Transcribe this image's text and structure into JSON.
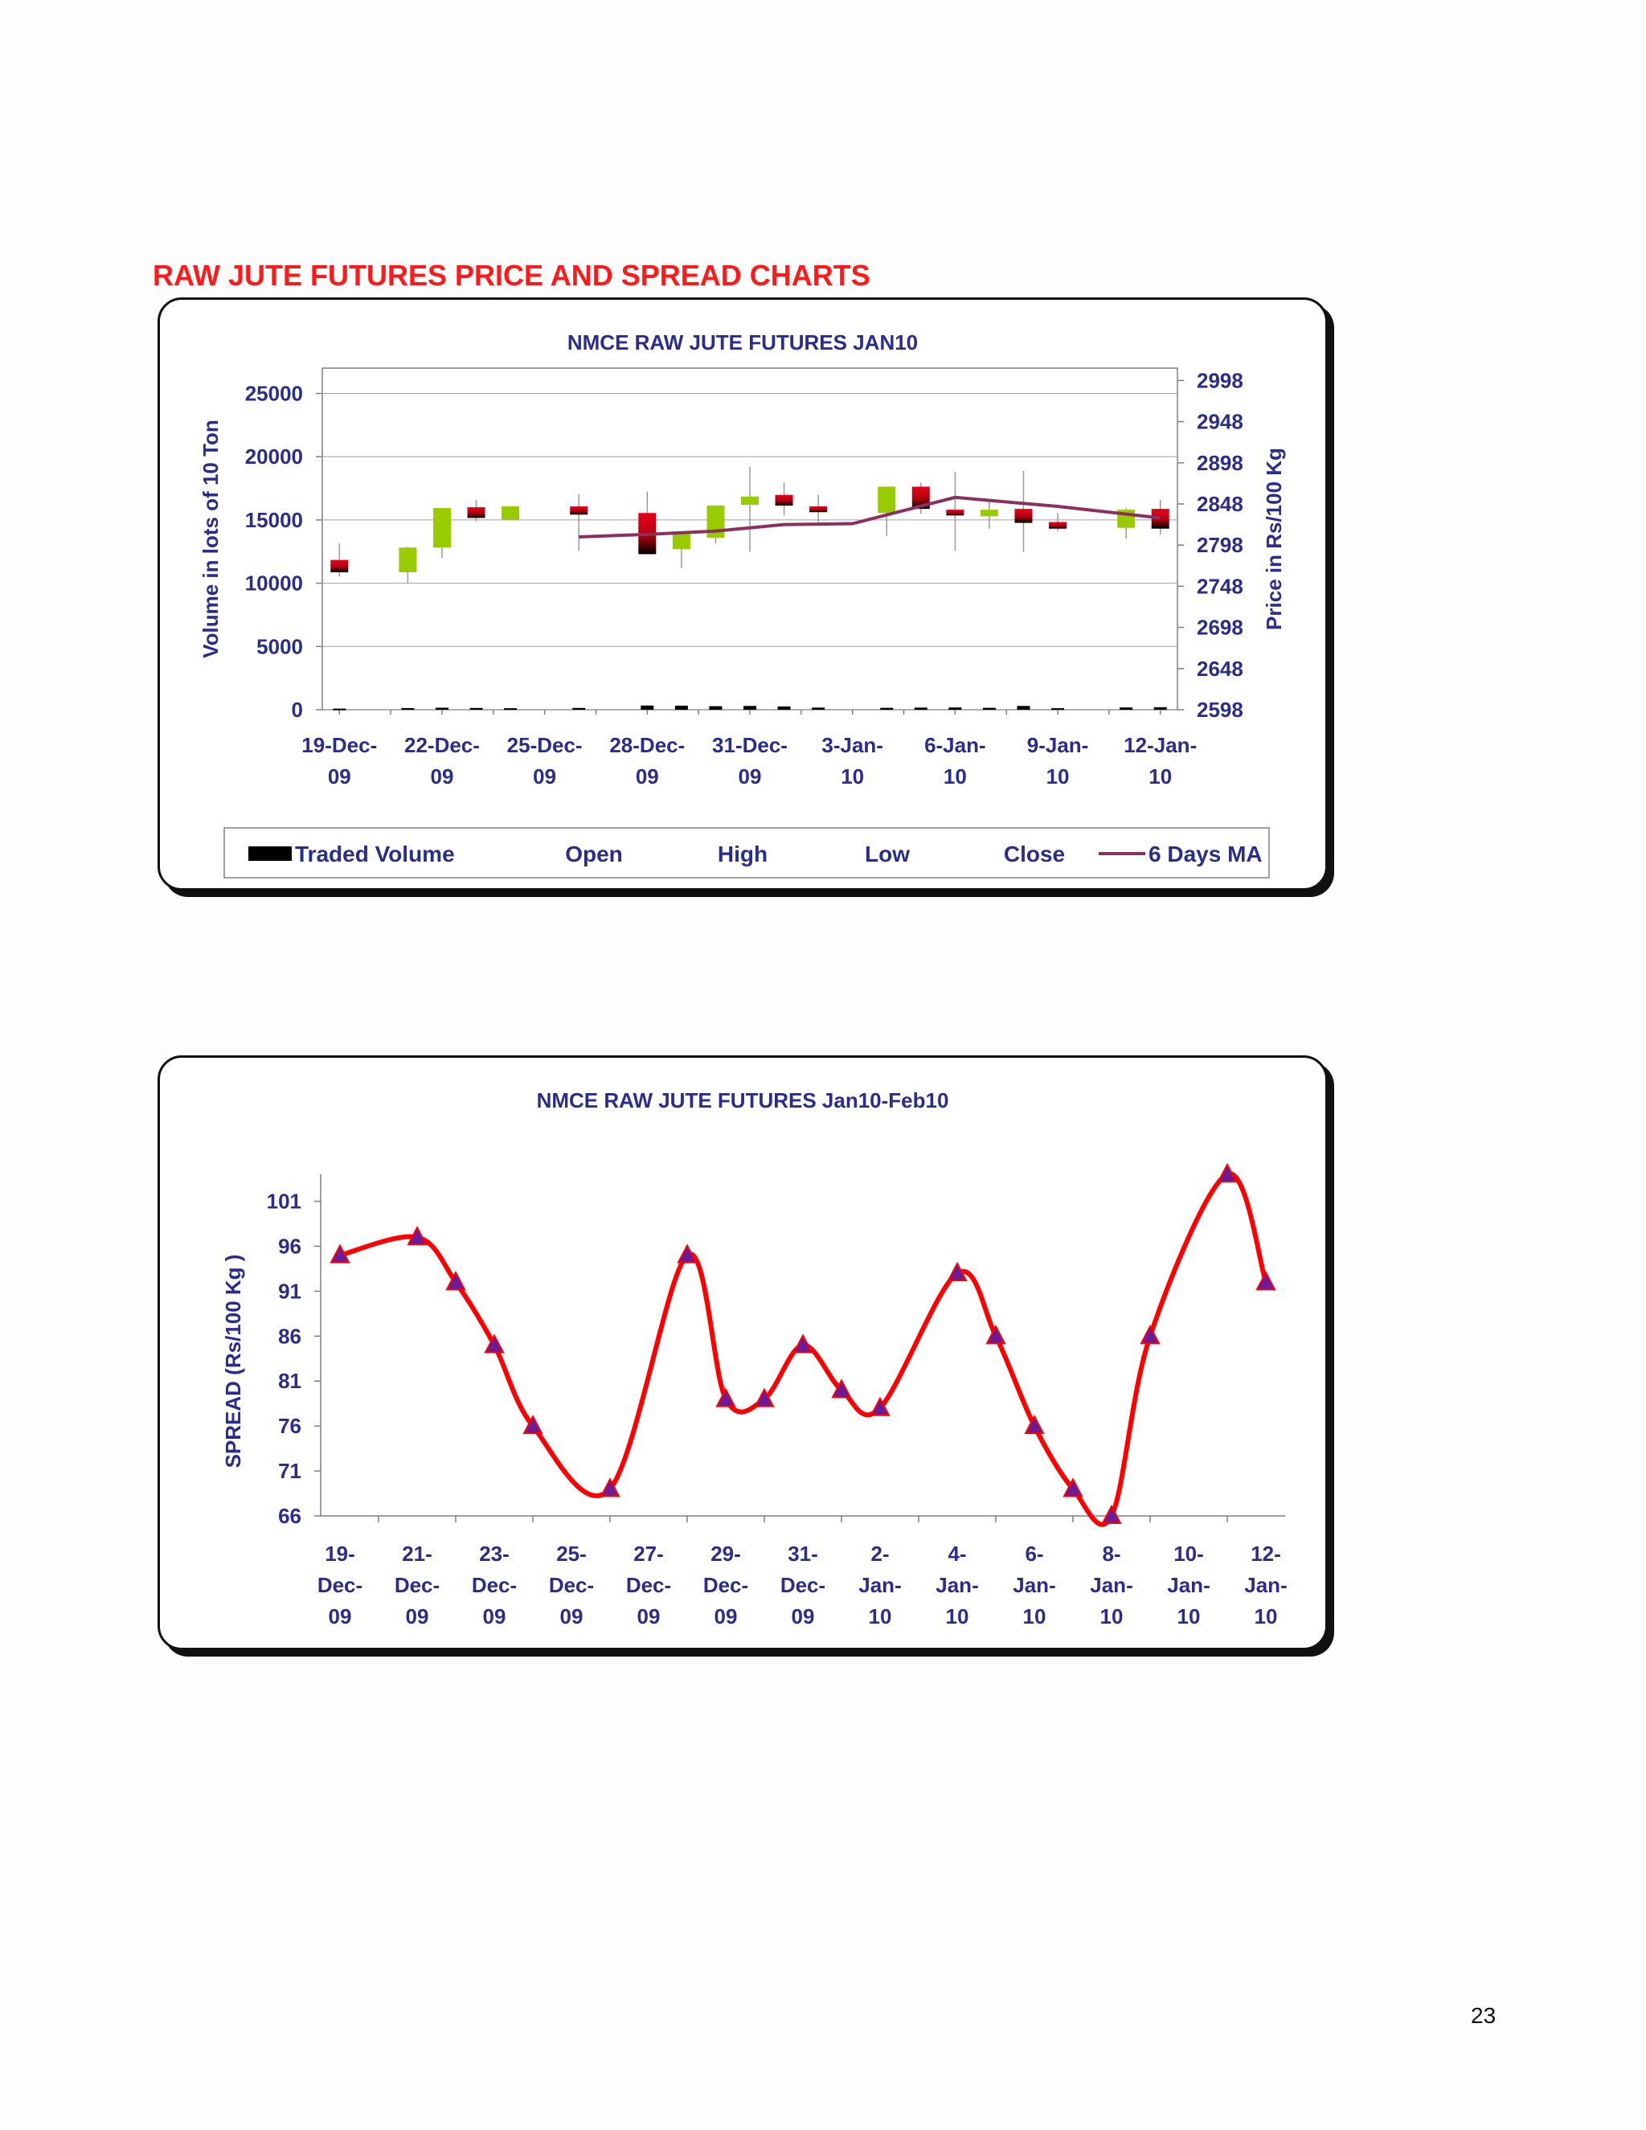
{
  "heading": "RAW JUTE FUTURES PRICE AND SPREAD CHARTS",
  "page_number": "23",
  "colors": {
    "heading": "#ff1a1a",
    "axis_text": "#2b2d8e",
    "bull_candle": "#99cc00",
    "bear_candle": "#e8001c",
    "ma_line": "#8b2f5e",
    "spread_line": "#ff0000",
    "spread_marker": "#6a1b9a"
  },
  "chart_data": [
    {
      "type": "candlestick",
      "title": "NMCE RAW JUTE FUTURES JAN10",
      "ylabel_left": "Volume in lots of 10 Ton",
      "ylabel_right": "Price in Rs/100 Kg",
      "y_left_ticks": [
        "0",
        "5000",
        "10000",
        "15000",
        "20000",
        "25000"
      ],
      "y_left_lim": [
        0,
        27000
      ],
      "y_right_ticks": [
        "2598",
        "2648",
        "2698",
        "2748",
        "2798",
        "2848",
        "2898",
        "2948",
        "2998"
      ],
      "y_right_lim": [
        2598,
        3013
      ],
      "x_tick_labels": [
        "19-Dec-\n09",
        "22-Dec-\n09",
        "25-Dec-\n09",
        "28-Dec-\n09",
        "31-Dec-\n09",
        "3-Jan-\n10",
        "6-Jan-\n10",
        "9-Jan-\n10",
        "12-Jan-\n10"
      ],
      "x_tick_days": [
        0,
        3,
        6,
        9,
        12,
        15,
        18,
        21,
        24
      ],
      "x_range_days": [
        -0.5,
        24.5
      ],
      "legend": [
        {
          "label": "Traded Volume",
          "symbol": "bar"
        },
        {
          "label": "Open",
          "symbol": "none"
        },
        {
          "label": "High",
          "symbol": "none"
        },
        {
          "label": "Low",
          "symbol": "none"
        },
        {
          "label": "Close",
          "symbol": "none"
        },
        {
          "label": "6 Days MA",
          "symbol": "line"
        }
      ],
      "candles": [
        {
          "day": 0,
          "open": 2780,
          "high": 2800,
          "low": 2760,
          "close": 2765,
          "volume": 90
        },
        {
          "day": 2,
          "open": 2765,
          "high": 2796,
          "low": 2752,
          "close": 2795,
          "volume": 130
        },
        {
          "day": 3,
          "open": 2795,
          "high": 2843,
          "low": 2782,
          "close": 2843,
          "volume": 160
        },
        {
          "day": 4,
          "open": 2844,
          "high": 2853,
          "low": 2827,
          "close": 2831,
          "volume": 140
        },
        {
          "day": 5,
          "open": 2829,
          "high": 2845,
          "low": 2829,
          "close": 2845,
          "volume": 120
        },
        {
          "day": 7,
          "open": 2845,
          "high": 2860,
          "low": 2791,
          "close": 2835,
          "volume": 140
        },
        {
          "day": 9,
          "open": 2837,
          "high": 2863,
          "low": 2790,
          "close": 2787,
          "volume": 330
        },
        {
          "day": 10,
          "open": 2793,
          "high": 2814,
          "low": 2770,
          "close": 2813,
          "volume": 320
        },
        {
          "day": 11,
          "open": 2807,
          "high": 2846,
          "low": 2800,
          "close": 2846,
          "volume": 280
        },
        {
          "day": 12,
          "open": 2847,
          "high": 2893,
          "low": 2790,
          "close": 2857,
          "volume": 300
        },
        {
          "day": 13,
          "open": 2859,
          "high": 2874,
          "low": 2834,
          "close": 2846,
          "volume": 260
        },
        {
          "day": 14,
          "open": 2845,
          "high": 2859,
          "low": 2826,
          "close": 2838,
          "volume": 170
        },
        {
          "day": 16,
          "open": 2837,
          "high": 2866,
          "low": 2809,
          "close": 2869,
          "volume": 150
        },
        {
          "day": 17,
          "open": 2869,
          "high": 2874,
          "low": 2836,
          "close": 2842,
          "volume": 170
        },
        {
          "day": 18,
          "open": 2841,
          "high": 2887,
          "low": 2791,
          "close": 2834,
          "volume": 180
        },
        {
          "day": 19,
          "open": 2833,
          "high": 2854,
          "low": 2818,
          "close": 2841,
          "volume": 150
        },
        {
          "day": 20,
          "open": 2842,
          "high": 2888,
          "low": 2790,
          "close": 2825,
          "volume": 300
        },
        {
          "day": 21,
          "open": 2826,
          "high": 2837,
          "low": 2815,
          "close": 2818,
          "volume": 120
        },
        {
          "day": 23,
          "open": 2819,
          "high": 2843,
          "low": 2806,
          "close": 2841,
          "volume": 180
        },
        {
          "day": 24,
          "open": 2842,
          "high": 2853,
          "low": 2811,
          "close": 2818,
          "volume": 200
        }
      ],
      "ma_6day": [
        {
          "day": 7,
          "value": 2808
        },
        {
          "day": 9,
          "value": 2811
        },
        {
          "day": 11,
          "value": 2815
        },
        {
          "day": 13,
          "value": 2823
        },
        {
          "day": 15,
          "value": 2824
        },
        {
          "day": 18,
          "value": 2856
        },
        {
          "day": 21,
          "value": 2845
        },
        {
          "day": 24,
          "value": 2831
        }
      ]
    },
    {
      "type": "line",
      "title": "NMCE RAW JUTE FUTURES Jan10-Feb10",
      "ylabel": "SPREAD (Rs/100 Kg     )",
      "y_ticks": [
        "66",
        "71",
        "76",
        "81",
        "86",
        "91",
        "96",
        "101"
      ],
      "ylim": [
        66,
        104
      ],
      "x_tick_labels": [
        "19-\nDec-\n09",
        "21-\nDec-\n09",
        "23-\nDec-\n09",
        "25-\nDec-\n09",
        "27-\nDec-\n09",
        "29-\nDec-\n09",
        "31-\nDec-\n09",
        "2-\nJan-\n10",
        "4-\nJan-\n10",
        "6-\nJan-\n10",
        "8-\nJan-\n10",
        "10-\nJan-\n10",
        "12-\nJan-\n10"
      ],
      "x_tick_days": [
        0,
        2,
        4,
        6,
        8,
        10,
        12,
        14,
        16,
        18,
        20,
        22,
        24
      ],
      "x_range_days": [
        -0.5,
        24.5
      ],
      "points": [
        {
          "day": 0,
          "value": 95
        },
        {
          "day": 2,
          "value": 97
        },
        {
          "day": 3,
          "value": 92
        },
        {
          "day": 4,
          "value": 85
        },
        {
          "day": 5,
          "value": 76
        },
        {
          "day": 7,
          "value": 69
        },
        {
          "day": 9,
          "value": 95
        },
        {
          "day": 10,
          "value": 79
        },
        {
          "day": 11,
          "value": 79
        },
        {
          "day": 12,
          "value": 85
        },
        {
          "day": 13,
          "value": 80
        },
        {
          "day": 14,
          "value": 78
        },
        {
          "day": 16,
          "value": 93
        },
        {
          "day": 17,
          "value": 86
        },
        {
          "day": 18,
          "value": 76
        },
        {
          "day": 19,
          "value": 69
        },
        {
          "day": 20,
          "value": 66
        },
        {
          "day": 21,
          "value": 86
        },
        {
          "day": 23,
          "value": 104
        },
        {
          "day": 24,
          "value": 92
        }
      ]
    }
  ]
}
